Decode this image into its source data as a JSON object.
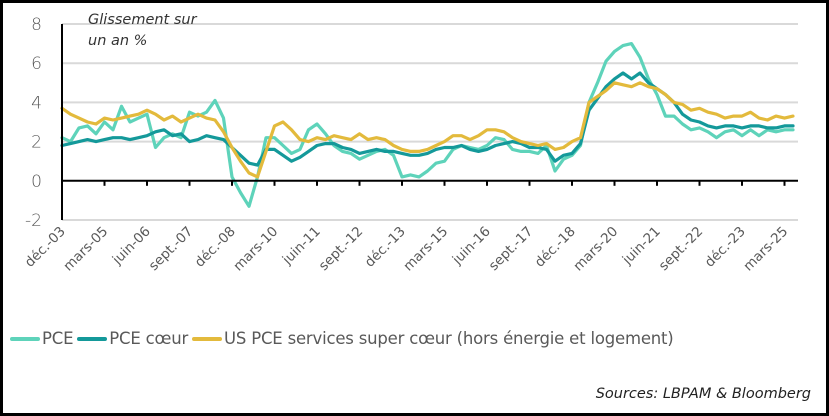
{
  "chart_data": {
    "type": "line",
    "title": "",
    "annotation": "Glissement sur\nun an %",
    "annotation_lines": [
      "Glissement sur",
      "un an %"
    ],
    "xlabel": "",
    "ylabel": "",
    "ylim": [
      -2,
      8
    ],
    "yticks": [
      -2,
      0,
      2,
      4,
      6,
      8
    ],
    "ytick_labels": [
      "-2",
      "0",
      "2",
      "4",
      "6",
      "8"
    ],
    "grid": true,
    "legend_position": "bottom",
    "x_start": "déc.-03",
    "x_step_months": 3,
    "x_tick_labels": [
      "déc.-03",
      "mars-05",
      "juin-06",
      "sept.-07",
      "déc.-08",
      "mars-10",
      "juin-11",
      "sept.-12",
      "déc.-13",
      "mars-15",
      "juin-16",
      "sept.-17",
      "déc.-18",
      "mars-20",
      "juin-21",
      "sept.-22",
      "déc.-23",
      "mars-25"
    ],
    "x_tick_interval_months": 15,
    "series": [
      {
        "name": "PCE",
        "color": "#5ED3BA",
        "values": [
          2.2,
          2.0,
          2.7,
          2.8,
          2.4,
          3.0,
          2.6,
          3.8,
          3.0,
          3.2,
          3.4,
          1.7,
          2.2,
          2.4,
          2.2,
          3.5,
          3.3,
          3.5,
          4.1,
          3.2,
          0.2,
          -0.6,
          -1.3,
          0.2,
          2.2,
          2.2,
          1.8,
          1.4,
          1.6,
          2.6,
          2.9,
          2.4,
          1.8,
          1.5,
          1.4,
          1.1,
          1.3,
          1.5,
          1.6,
          1.3,
          0.2,
          0.3,
          0.2,
          0.5,
          0.9,
          1.0,
          1.6,
          1.8,
          1.7,
          1.6,
          1.8,
          2.2,
          2.1,
          1.6,
          1.5,
          1.5,
          1.4,
          1.8,
          0.5,
          1.1,
          1.3,
          1.8,
          4.0,
          5.0,
          6.1,
          6.6,
          6.9,
          7.0,
          6.3,
          5.2,
          4.4,
          3.3,
          3.3,
          2.9,
          2.6,
          2.7,
          2.5,
          2.2,
          2.5,
          2.6,
          2.3,
          2.6,
          2.3,
          2.6,
          2.5,
          2.6,
          2.6
        ],
        "legend_label": "PCE"
      },
      {
        "name": "PCE cœur",
        "color": "#14999A",
        "values": [
          1.8,
          1.9,
          2.0,
          2.1,
          2.0,
          2.1,
          2.2,
          2.2,
          2.1,
          2.2,
          2.3,
          2.5,
          2.6,
          2.3,
          2.4,
          2.0,
          2.1,
          2.3,
          2.2,
          2.1,
          1.7,
          1.3,
          0.9,
          0.8,
          1.6,
          1.6,
          1.3,
          1.0,
          1.2,
          1.5,
          1.8,
          1.9,
          1.9,
          1.7,
          1.6,
          1.4,
          1.5,
          1.6,
          1.5,
          1.5,
          1.4,
          1.3,
          1.3,
          1.4,
          1.6,
          1.7,
          1.7,
          1.8,
          1.6,
          1.5,
          1.6,
          1.8,
          1.9,
          2.0,
          1.9,
          1.7,
          1.7,
          1.6,
          1.0,
          1.3,
          1.4,
          1.9,
          3.6,
          4.2,
          4.8,
          5.2,
          5.5,
          5.2,
          5.5,
          5.0,
          4.7,
          4.4,
          4.0,
          3.4,
          3.1,
          3.0,
          2.8,
          2.7,
          2.8,
          2.8,
          2.7,
          2.8,
          2.8,
          2.7,
          2.7,
          2.8,
          2.8
        ],
        "legend_label": "PCE cœur"
      },
      {
        "name": "US PCE services super cœur (hors énergie et logement)",
        "color": "#E3BA3C",
        "values": [
          3.7,
          3.4,
          3.2,
          3.0,
          2.9,
          3.2,
          3.1,
          3.2,
          3.3,
          3.4,
          3.6,
          3.4,
          3.1,
          3.3,
          3.0,
          3.2,
          3.4,
          3.2,
          3.1,
          2.5,
          1.7,
          1.0,
          0.4,
          0.2,
          1.5,
          2.8,
          3.0,
          2.6,
          2.1,
          2.0,
          2.2,
          2.1,
          2.3,
          2.2,
          2.1,
          2.4,
          2.1,
          2.2,
          2.1,
          1.8,
          1.6,
          1.5,
          1.5,
          1.6,
          1.8,
          2.0,
          2.3,
          2.3,
          2.1,
          2.3,
          2.6,
          2.6,
          2.5,
          2.2,
          2.0,
          1.9,
          1.8,
          1.9,
          1.6,
          1.7,
          2.0,
          2.2,
          4.0,
          4.3,
          4.6,
          5.0,
          4.9,
          4.8,
          5.0,
          4.8,
          4.7,
          4.4,
          4.0,
          3.9,
          3.6,
          3.7,
          3.5,
          3.4,
          3.2,
          3.3,
          3.3,
          3.5,
          3.2,
          3.1,
          3.3,
          3.2,
          3.3
        ],
        "legend_label": "US PCE services super cœur (hors énergie et logement)"
      }
    ]
  },
  "legend": {
    "items": [
      {
        "label": "PCE",
        "color": "#5ED3BA"
      },
      {
        "label": "PCE cœur",
        "color": "#14999A"
      },
      {
        "label": "US PCE services super cœur (hors énergie et logement)",
        "color": "#E3BA3C"
      }
    ]
  },
  "source": "Sources: LBPAM & Bloomberg"
}
